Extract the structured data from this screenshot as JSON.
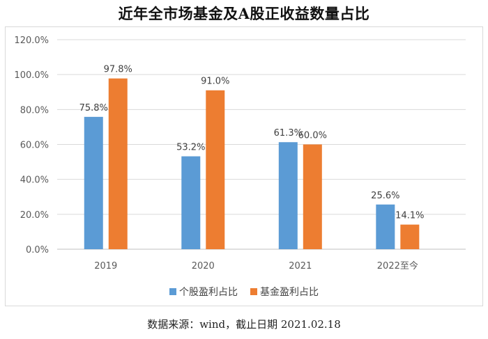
{
  "chart_data": {
    "type": "bar",
    "title": "近年全市场基金及A股正收益数量占比",
    "categories": [
      "2019",
      "2020",
      "2021",
      "2022至今"
    ],
    "series": [
      {
        "name": "个股盈利占比",
        "color": "#5b9bd5",
        "values": [
          75.8,
          53.2,
          61.3,
          25.6
        ],
        "labels": [
          "75.8%",
          "53.2%",
          "61.3%",
          "25.6%"
        ]
      },
      {
        "name": "基金盈利占比",
        "color": "#ed7d31",
        "values": [
          97.8,
          91.0,
          60.0,
          14.1
        ],
        "labels": [
          "97.8%",
          "91.0%",
          "60.0%",
          "14.1%"
        ]
      }
    ],
    "ylim": [
      0,
      120
    ],
    "yticks": [
      "0.0%",
      "20.0%",
      "40.0%",
      "60.0%",
      "80.0%",
      "100.0%",
      "120.0%"
    ],
    "ytick_values": [
      0,
      20,
      40,
      60,
      80,
      100,
      120
    ],
    "grid": true,
    "legend": "bottom",
    "xlabel": "",
    "ylabel": ""
  },
  "source_note": "数据来源：wind，截止日期 2021.02.18"
}
